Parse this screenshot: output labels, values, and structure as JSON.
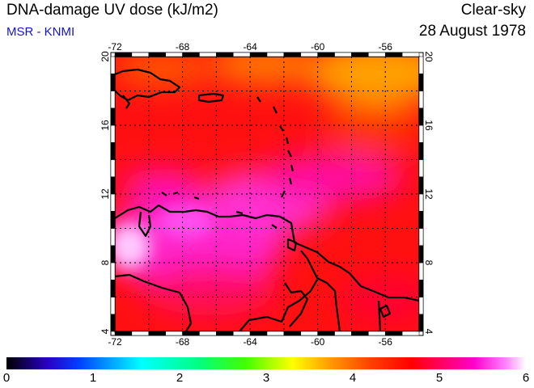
{
  "header": {
    "title": "DNA-damage UV dose (kJ/m2)",
    "source": "MSR - KNMI",
    "condition": "Clear-sky",
    "date": "28 August 1978"
  },
  "map": {
    "lon_ticks": [
      "-72",
      "-68",
      "-64",
      "-60",
      "-56"
    ],
    "lat_ticks": [
      "4",
      "8",
      "12",
      "16",
      "20"
    ],
    "lon_range": [
      -72,
      -54
    ],
    "lat_range": [
      4,
      20
    ]
  },
  "colorbar": {
    "ticks": [
      "0",
      "1",
      "2",
      "3",
      "4",
      "5",
      "6"
    ],
    "min": 0,
    "max": 6
  },
  "colors": {
    "title_text": "#000000",
    "source_text": "#1414c8",
    "low_field": "#ff0a0a",
    "high_field": "#ff2ee0",
    "peak_field": "#ffd0ff",
    "north_east_field": "#ffa800"
  }
}
